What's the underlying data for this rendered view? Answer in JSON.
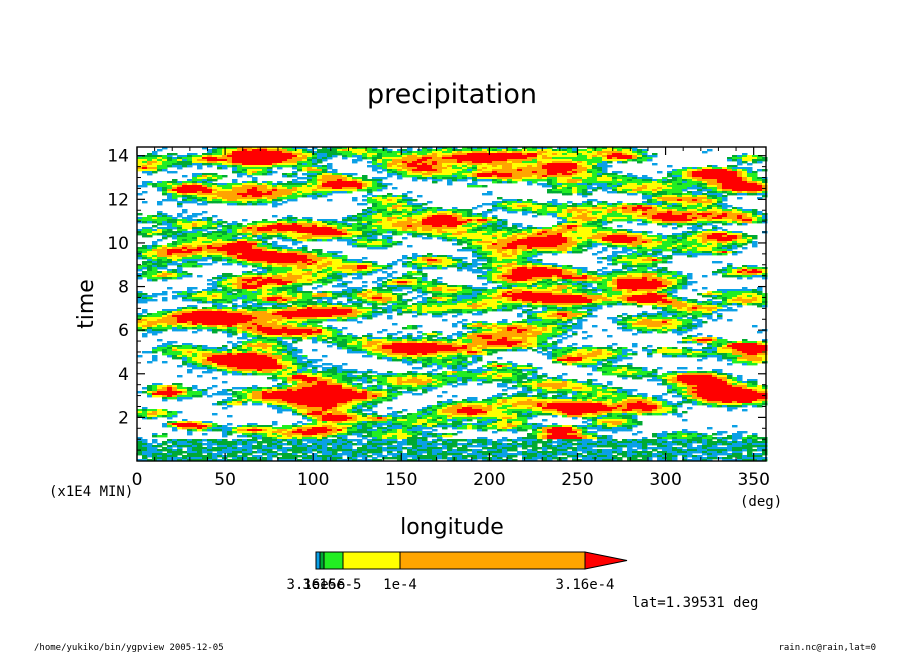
{
  "chart_data": {
    "type": "heatmap",
    "title": "precipitation",
    "xlabel": "longitude",
    "ylabel": "time",
    "x_unit": "(deg)",
    "y_unit": "(x1E4 MIN)",
    "xlim": [
      0,
      357
    ],
    "ylim": [
      0,
      14.4
    ],
    "x_ticks": [
      0,
      50,
      100,
      150,
      200,
      250,
      300,
      350
    ],
    "y_ticks": [
      2,
      4,
      6,
      8,
      10,
      12,
      14
    ],
    "colorbar": {
      "colors": [
        "#0aa0e6",
        "#00aa33",
        "#22ee22",
        "#ffff00",
        "#ffa500",
        "#ff0000"
      ],
      "levels": [
        "3.16e-6",
        "1e-5",
        "3.16e-5",
        "1e-4",
        "3.16e-4"
      ],
      "labels": [
        "3.16e-6",
        "1e-5",
        "3.16e-5",
        "1e-4",
        "3.16e-4"
      ],
      "extend": "max"
    },
    "annotation": "lat=1.39531 deg"
  },
  "footer": {
    "left": "/home/yukiko/bin/ygpview  2005-12-05",
    "right": "rain.nc@rain,lat=0"
  }
}
